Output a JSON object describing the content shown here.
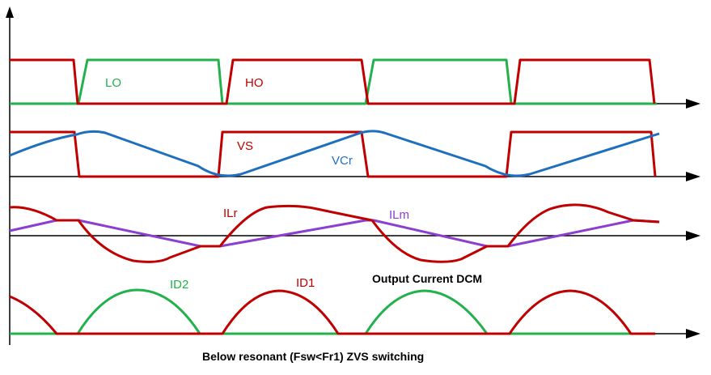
{
  "labels": {
    "lo": "LO",
    "ho": "HO",
    "vs": "VS",
    "vcr": "VCr",
    "ilr": "ILr",
    "ilm": "ILm",
    "id2": "ID2",
    "id1": "ID1",
    "output_note": "Output Current DCM",
    "caption": "Below resonant (Fsw<Fr1) ZVS switching"
  },
  "colors": {
    "axis": "#000000",
    "red": "#c00000",
    "green": "#22b14c",
    "blue": "#1f6fbf",
    "purple": "#8a3fd0"
  }
}
